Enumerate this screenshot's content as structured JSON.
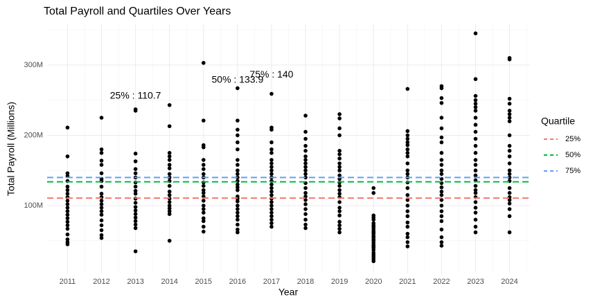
{
  "chart_data": {
    "type": "scatter",
    "title": "Total Payroll and Quartiles Over Years",
    "x_label": "Year",
    "y_label": "Total Payroll (Millions)",
    "categories": [
      "2011",
      "2012",
      "2013",
      "2014",
      "2015",
      "2016",
      "2017",
      "2018",
      "2019",
      "2020",
      "2021",
      "2022",
      "2023",
      "2024"
    ],
    "values": [
      [
        211,
        170,
        146,
        142,
        135,
        127,
        122,
        117,
        112,
        107,
        102,
        97,
        92,
        87,
        82,
        77,
        72,
        67,
        59,
        52,
        48,
        45
      ],
      [
        225,
        180,
        175,
        164,
        158,
        146,
        138,
        135,
        127,
        117,
        112,
        107,
        102,
        97,
        92,
        87,
        79,
        72,
        65,
        58,
        54
      ],
      [
        235,
        237,
        174,
        163,
        152,
        146,
        140,
        133,
        127,
        121,
        117,
        110,
        104,
        98,
        93,
        88,
        83,
        78,
        73,
        68,
        35
      ],
      [
        243,
        213,
        175,
        170,
        165,
        158,
        153,
        145,
        140,
        135,
        128,
        120,
        115,
        110,
        105,
        100,
        96,
        92,
        88,
        50
      ],
      [
        303,
        221,
        186,
        183,
        165,
        158,
        152,
        145,
        140,
        133,
        128,
        122,
        118,
        113,
        107,
        100,
        95,
        90,
        82,
        78,
        70,
        63
      ],
      [
        267,
        221,
        208,
        200,
        190,
        180,
        165,
        158,
        150,
        145,
        140,
        135,
        130,
        126,
        122,
        113,
        110,
        106,
        100,
        95,
        90,
        85,
        80,
        73,
        66,
        62
      ],
      [
        259,
        211,
        208,
        190,
        180,
        175,
        165,
        160,
        155,
        150,
        145,
        140,
        135,
        130,
        125,
        120,
        115,
        110,
        105,
        100,
        95,
        90,
        85,
        80,
        75,
        70
      ],
      [
        228,
        205,
        195,
        185,
        178,
        170,
        165,
        160,
        155,
        150,
        145,
        140,
        132,
        125,
        118,
        113,
        108,
        102,
        95,
        88,
        80,
        73,
        68
      ],
      [
        230,
        224,
        210,
        200,
        178,
        173,
        167,
        160,
        155,
        150,
        143,
        138,
        133,
        128,
        122,
        117,
        112,
        105,
        97,
        92,
        86,
        77,
        72,
        67,
        62
      ],
      [
        125,
        118,
        86,
        83,
        80,
        75,
        72,
        70,
        67,
        64,
        62,
        60,
        57,
        55,
        52,
        50,
        47,
        44,
        42,
        40,
        37,
        33,
        30,
        27,
        24,
        21
      ],
      [
        266,
        206,
        200,
        195,
        190,
        186,
        180,
        175,
        170,
        160,
        150,
        145,
        140,
        133,
        125,
        115,
        108,
        100,
        92,
        85,
        76,
        70,
        60,
        55,
        48,
        42
      ],
      [
        270,
        267,
        253,
        246,
        225,
        210,
        197,
        190,
        175,
        165,
        158,
        150,
        145,
        138,
        132,
        126,
        120,
        115,
        108,
        100,
        92,
        85,
        78,
        66,
        55,
        48,
        43
      ],
      [
        345,
        280,
        256,
        250,
        245,
        240,
        235,
        225,
        215,
        205,
        195,
        185,
        175,
        165,
        158,
        150,
        143,
        136,
        128,
        122,
        118,
        112,
        105,
        97,
        90,
        80,
        70,
        62
      ],
      [
        310,
        308,
        252,
        245,
        235,
        230,
        225,
        220,
        200,
        185,
        178,
        170,
        160,
        150,
        145,
        140,
        135,
        125,
        118,
        112,
        108,
        103,
        95,
        85,
        62
      ]
    ],
    "color": "#000000",
    "ylim": [
      3.5,
      358
    ],
    "yticks": [
      {
        "value": 100,
        "label": "100M"
      },
      {
        "value": 200,
        "label": "200M"
      },
      {
        "value": 300,
        "label": "300M"
      }
    ],
    "minor_yticks": [
      50,
      150,
      250,
      350
    ],
    "grid": true,
    "legend_title": "Quartile",
    "legend_position": "right",
    "series": [
      {
        "name": "25%",
        "color": "#F8766D",
        "value": 110.7,
        "label": "25% : 110.7"
      },
      {
        "name": "50%",
        "color": "#00BA38",
        "value": 133.9,
        "label": "50% : 133.9"
      },
      {
        "name": "75%",
        "color": "#619CFF",
        "value": 140,
        "label": "75% : 140"
      }
    ]
  }
}
